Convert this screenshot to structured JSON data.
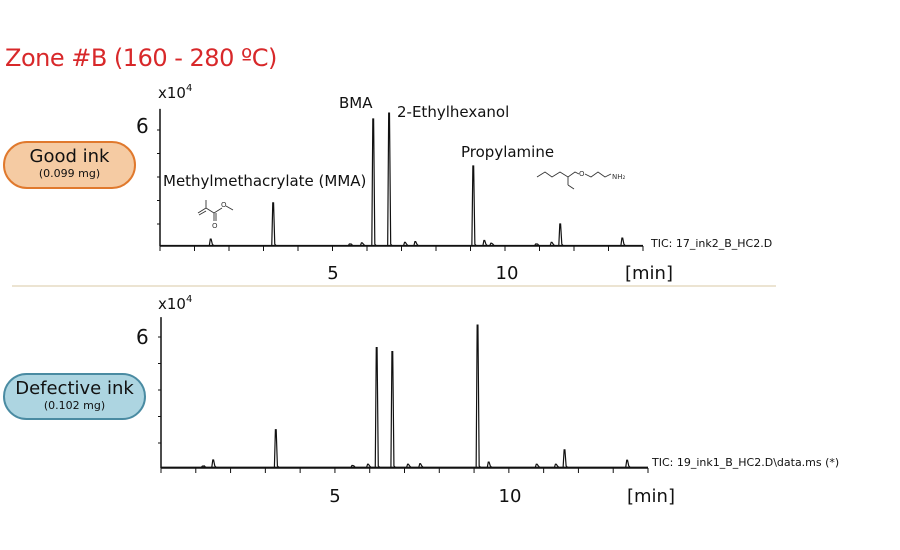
{
  "title": "Zone #B (160 - 280 ºC)",
  "colors": {
    "title": "#d8282a",
    "good_fill": "#f5cba3",
    "good_border": "#e0792d",
    "defective_fill": "#add5e1",
    "defective_border": "#4a8ba2",
    "trace": "#111111",
    "divider": "#e6dcc4"
  },
  "samples": [
    {
      "label": "Good ink",
      "mass": "(0.099 mg)"
    },
    {
      "label": "Defective ink",
      "mass": "(0.102 mg)"
    }
  ],
  "chart_data": [
    {
      "type": "line",
      "trace_label": "TIC: 17_ink2_B_HC2.D",
      "y_multiplier": "x10",
      "y_multiplier_exp": "4",
      "ytick_label": "6",
      "ytick_labeled_value": 6,
      "yticks": [
        2,
        3,
        4,
        5,
        6
      ],
      "ylim": [
        1,
        6.9
      ],
      "xlim": [
        0,
        14
      ],
      "xticks": [
        0,
        1,
        2,
        3,
        4,
        5,
        6,
        7,
        8,
        9,
        10,
        11,
        12,
        13,
        14
      ],
      "xtick_labels": [
        {
          "value": 5,
          "text": "5"
        },
        {
          "value": 10,
          "text": "10"
        }
      ],
      "xlabel": "[min]",
      "baseline": 1.08,
      "peaks": [
        {
          "x": 1.47,
          "y": 1.36
        },
        {
          "x": 3.28,
          "y": 2.9
        },
        {
          "x": 5.5,
          "y": 1.15
        },
        {
          "x": 5.85,
          "y": 1.2
        },
        {
          "x": 6.18,
          "y": 6.47
        },
        {
          "x": 6.64,
          "y": 6.72
        },
        {
          "x": 7.1,
          "y": 1.22
        },
        {
          "x": 7.4,
          "y": 1.25
        },
        {
          "x": 9.08,
          "y": 4.47
        },
        {
          "x": 9.4,
          "y": 1.3
        },
        {
          "x": 9.6,
          "y": 1.18
        },
        {
          "x": 10.9,
          "y": 1.15
        },
        {
          "x": 11.35,
          "y": 1.22
        },
        {
          "x": 11.6,
          "y": 2.0
        },
        {
          "x": 13.4,
          "y": 1.4
        }
      ],
      "annotations": [
        {
          "text": "Methylmethacrylate (MMA)"
        },
        {
          "text": "BMA"
        },
        {
          "text": "2-Ethylhexanol"
        },
        {
          "text": "Propylamine"
        }
      ],
      "structure_labels": {
        "mma_o1": "O",
        "mma_o2": "O",
        "prop_o": "O",
        "prop_nh2": "NH₂"
      }
    },
    {
      "type": "line",
      "trace_label": "TIC: 19_ink1_B_HC2.D\\data.ms (*)",
      "y_multiplier": "x10",
      "y_multiplier_exp": "4",
      "ytick_label": "6",
      "ytick_labeled_value": 6,
      "yticks": [
        2,
        3,
        4,
        5,
        6
      ],
      "ylim": [
        1,
        6.75
      ],
      "xlim": [
        0,
        14
      ],
      "xticks": [
        0,
        1,
        2,
        3,
        4,
        5,
        6,
        7,
        8,
        9,
        10,
        11,
        12,
        13,
        14
      ],
      "xtick_labels": [
        {
          "value": 5,
          "text": "5"
        },
        {
          "value": 10,
          "text": "10"
        }
      ],
      "xlabel": "[min]",
      "baseline": 1.08,
      "peaks": [
        {
          "x": 1.2,
          "y": 1.13
        },
        {
          "x": 1.5,
          "y": 1.36
        },
        {
          "x": 3.3,
          "y": 2.5
        },
        {
          "x": 5.5,
          "y": 1.15
        },
        {
          "x": 5.95,
          "y": 1.2
        },
        {
          "x": 6.2,
          "y": 5.6
        },
        {
          "x": 6.65,
          "y": 5.45
        },
        {
          "x": 7.1,
          "y": 1.2
        },
        {
          "x": 7.45,
          "y": 1.22
        },
        {
          "x": 9.1,
          "y": 6.45
        },
        {
          "x": 9.42,
          "y": 1.28
        },
        {
          "x": 10.8,
          "y": 1.2
        },
        {
          "x": 11.35,
          "y": 1.2
        },
        {
          "x": 11.6,
          "y": 1.74
        },
        {
          "x": 13.4,
          "y": 1.35
        }
      ]
    }
  ]
}
